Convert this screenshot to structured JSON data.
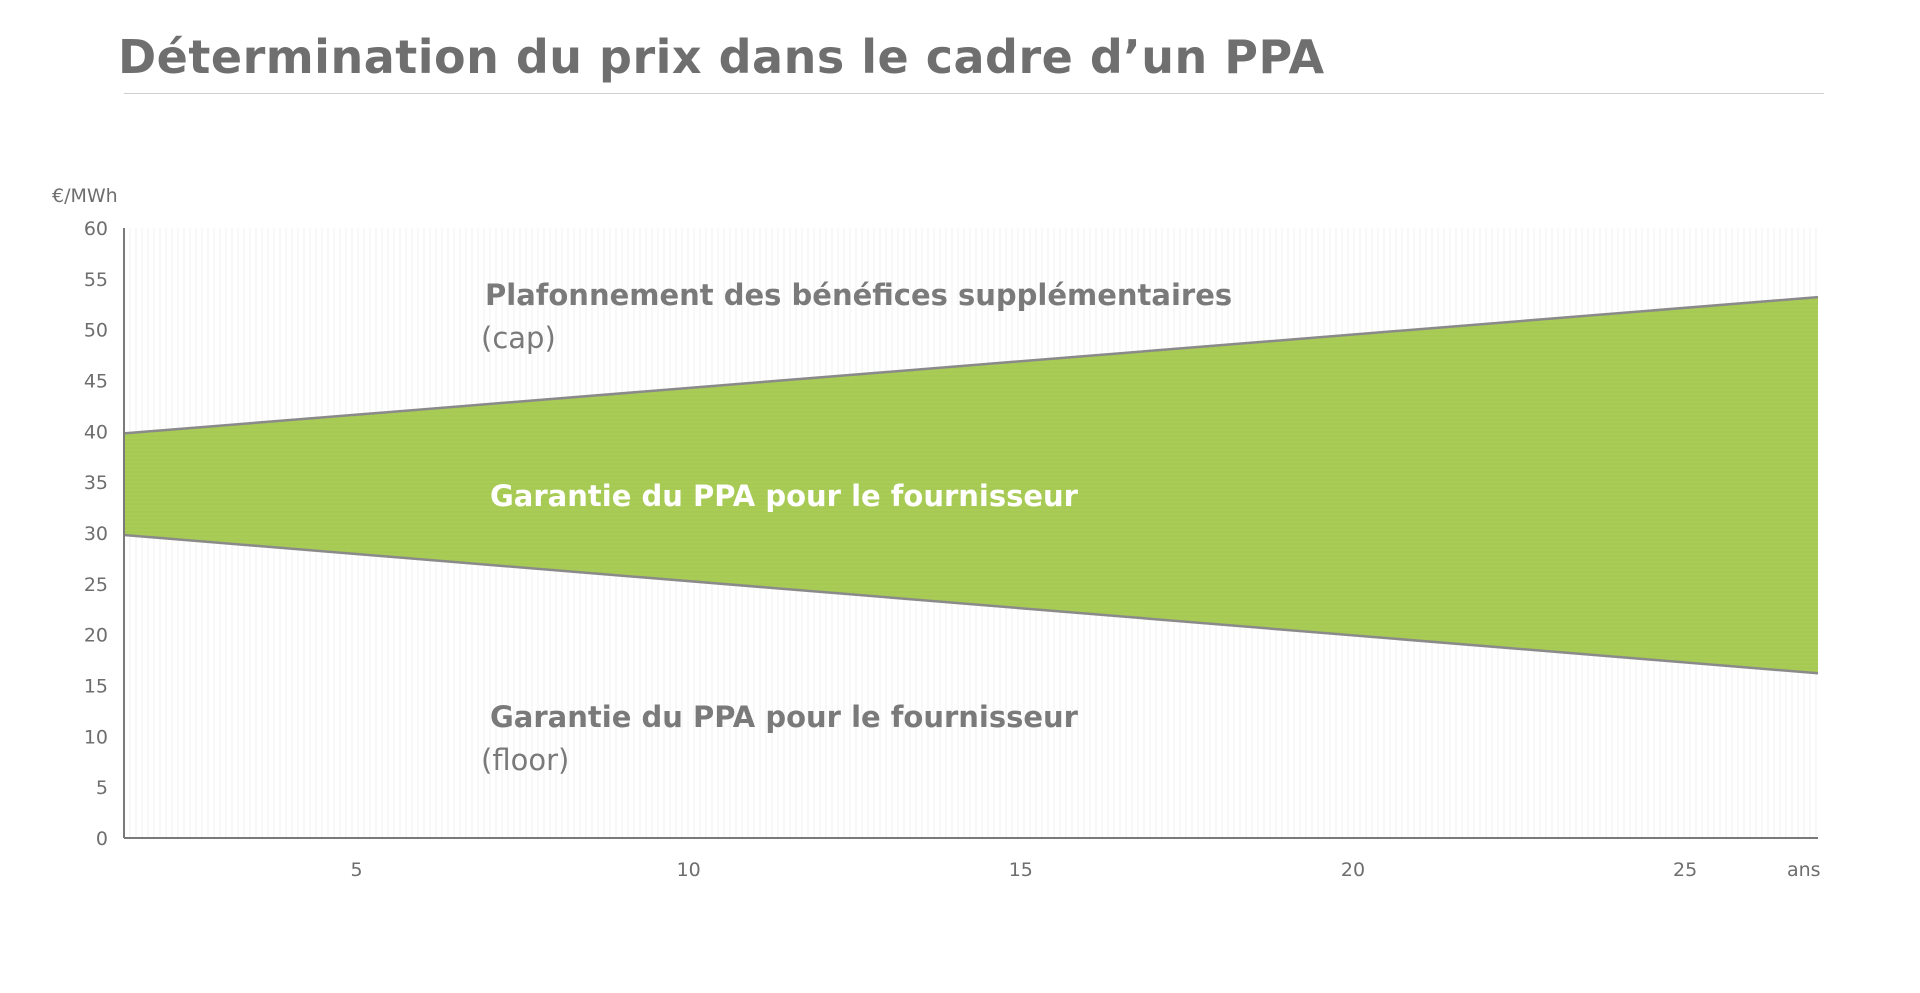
{
  "title": "Détermination du prix dans le cadre d’un PPA",
  "colors": {
    "band_fill": "#a9cc57",
    "band_edge": "#8a8a8a",
    "axis": "#7a7a7a",
    "text": "#6f6f6f"
  },
  "chart_data": {
    "type": "area",
    "ylabel": "€/MWh",
    "xlabel": "ans",
    "xlim": [
      1.5,
      27
    ],
    "ylim": [
      0,
      60
    ],
    "yticks": [
      0,
      5,
      10,
      15,
      20,
      25,
      30,
      35,
      40,
      45,
      50,
      55,
      60
    ],
    "xticks": [
      5,
      10,
      15,
      20,
      25
    ],
    "series": [
      {
        "name": "cap",
        "x": [
          1.5,
          27
        ],
        "values": [
          39.8,
          53.2
        ]
      },
      {
        "name": "floor",
        "x": [
          1.5,
          27
        ],
        "values": [
          29.8,
          16.2
        ]
      }
    ],
    "grid": true,
    "annotations": {
      "cap_title": "Plafonnement des bénéfices supplémentaires",
      "cap_sub": "(cap)",
      "band": "Garantie du PPA pour le fournisseur",
      "floor_title": "Garantie du PPA pour le fournisseur",
      "floor_sub": "(floor)"
    }
  }
}
